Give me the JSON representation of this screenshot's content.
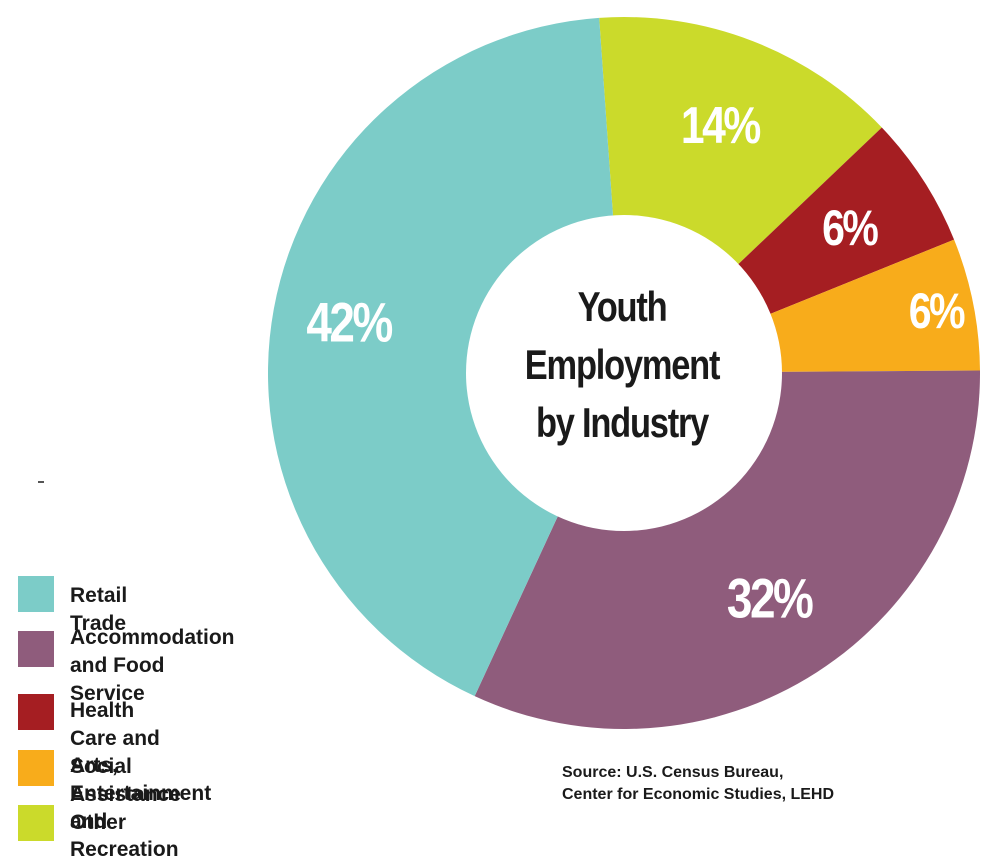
{
  "center_title": [
    "Youth",
    "Employment",
    "by Industry"
  ],
  "chart_data": {
    "type": "pie",
    "title": "Youth Employment by Industry",
    "donut": true,
    "slices": [
      {
        "name": "Other",
        "value": 14,
        "label": "14%",
        "color": "#CBDA2B"
      },
      {
        "name": "Health Care and Social Assistance",
        "value": 6,
        "label": "6%",
        "color": "#A51E22"
      },
      {
        "name": "Arts, Entertainment and Recreation",
        "value": 6,
        "label": "6%",
        "color": "#F8AC1B"
      },
      {
        "name": "Accommodation and Food Service",
        "value": 32,
        "label": "32%",
        "color": "#8F5C7C"
      },
      {
        "name": "Retail Trade",
        "value": 42,
        "label": "42%",
        "color": "#7CCCC8"
      }
    ],
    "legend_position": "bottom-left"
  },
  "legend": [
    {
      "label": "Retail Trade",
      "color": "#7CCCC8"
    },
    {
      "label": "Accommodation\nand Food Service",
      "color": "#8F5C7C"
    },
    {
      "label": "Health Care and Social Assistance",
      "color": "#A51E22"
    },
    {
      "label": "Arts, Entertainment and Recreation",
      "color": "#F8AC1B"
    },
    {
      "label": "Other",
      "color": "#CBDA2B"
    }
  ],
  "source": "Source: U.S. Census Bureau,\nCenter for Economic Studies, LEHD"
}
